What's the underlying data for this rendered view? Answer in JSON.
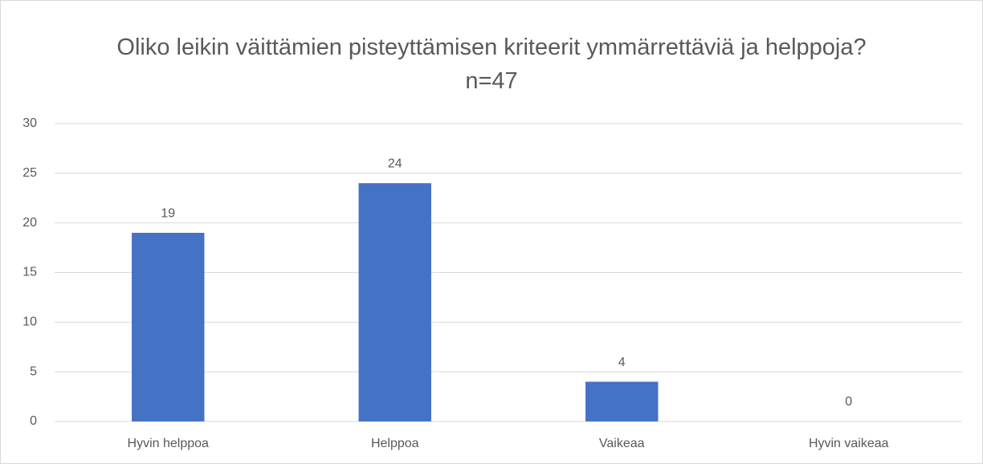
{
  "chart_data": {
    "type": "bar",
    "title": "Oliko leikin väittämien pisteyttämisen kriteerit ymmärrettäviä ja helppoja? n=47",
    "categories": [
      "Hyvin helppoa",
      "Helppoa",
      "Vaikeaa",
      "Hyvin vaikeaa"
    ],
    "values": [
      19,
      24,
      4,
      0
    ],
    "color": "#4472c4",
    "ylim": [
      0,
      30
    ],
    "yticks": [
      0,
      5,
      10,
      15,
      20,
      25,
      30
    ],
    "grid": true
  }
}
